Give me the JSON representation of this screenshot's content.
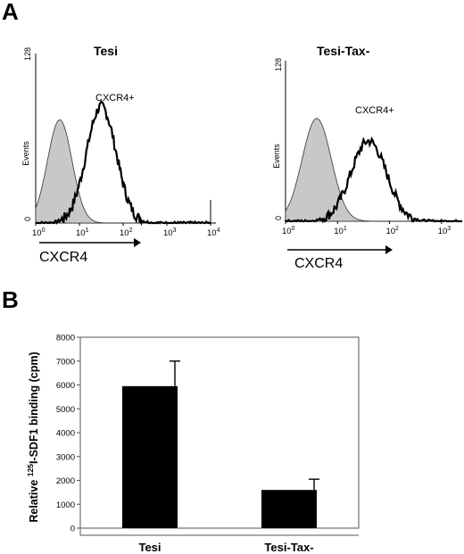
{
  "chart_data": [
    {
      "panel": "A",
      "type": "histogram",
      "title": "Tesi",
      "ylabel": "Events",
      "xlabel": "CXCR4",
      "y_ticks": [
        "0",
        "128"
      ],
      "x_ticks": [
        "10",
        "10",
        "10",
        "10",
        "10"
      ],
      "x_tick_exponents": [
        "0",
        "1",
        "2",
        "3",
        "4"
      ],
      "annotation": "CXCR4+",
      "ylim": [
        0,
        128
      ],
      "xlim_log10": [
        0,
        4
      ],
      "series": [
        {
          "role": "control",
          "peak_log10": 0.55,
          "peak_events": 78,
          "fill": "#c8c8c8"
        },
        {
          "role": "cxcr4",
          "peak_log10": 1.5,
          "peak_events": 88,
          "fill": "none"
        }
      ]
    },
    {
      "panel": "A",
      "type": "histogram",
      "title": "Tesi-Tax-",
      "ylabel": "Events",
      "xlabel": "CXCR4",
      "y_ticks": [
        "0",
        "128"
      ],
      "x_ticks": [
        "10",
        "10",
        "10",
        "10"
      ],
      "x_tick_exponents": [
        "0",
        "1",
        "2",
        "3"
      ],
      "annotation": "CXCR4+",
      "ylim": [
        0,
        128
      ],
      "xlim_log10": [
        0,
        3.4
      ],
      "series": [
        {
          "role": "control",
          "peak_log10": 0.6,
          "peak_events": 82,
          "fill": "#c8c8c8"
        },
        {
          "role": "cxcr4",
          "peak_log10": 1.6,
          "peak_events": 64,
          "fill": "none"
        }
      ]
    },
    {
      "panel": "B",
      "type": "bar",
      "title": "",
      "ylabel_parts": [
        "Relative ",
        "125",
        "I-SDF1 binding (cpm)"
      ],
      "categories": [
        "Tesi",
        "Tesi-Tax-"
      ],
      "values": [
        5950,
        1600
      ],
      "errors": [
        1050,
        450
      ],
      "ylim": [
        0,
        8000
      ],
      "y_ticks": [
        0,
        1000,
        2000,
        3000,
        4000,
        5000,
        6000,
        7000,
        8000
      ],
      "bar_color": "#000000"
    }
  ],
  "panel_labels": [
    "A",
    "B"
  ]
}
